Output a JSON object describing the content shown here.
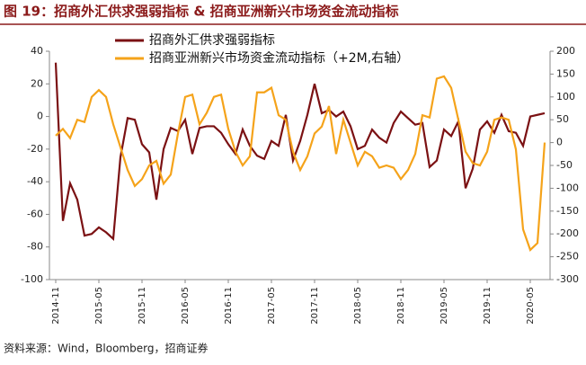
{
  "chart_data": {
    "type": "line",
    "title": "图 19：招商外汇供求强弱指标 & 招商亚洲新兴市场资金流动指标",
    "source": "资料来源：Wind，Bloomberg，招商证券",
    "categories": [
      "2014-11",
      null,
      null,
      null,
      null,
      null,
      "2015-05",
      null,
      null,
      null,
      null,
      null,
      "2015-11",
      null,
      null,
      null,
      null,
      null,
      "2016-05",
      null,
      null,
      null,
      null,
      null,
      "2016-11",
      null,
      null,
      null,
      null,
      null,
      "2017-05",
      null,
      null,
      null,
      null,
      null,
      "2017-11",
      null,
      null,
      null,
      null,
      null,
      "2018-05",
      null,
      null,
      null,
      null,
      null,
      "2018-11",
      null,
      null,
      null,
      null,
      null,
      "2019-05",
      null,
      null,
      null,
      null,
      null,
      "2019-11",
      null,
      null,
      null,
      null,
      null,
      "2020-05",
      null,
      null
    ],
    "series": [
      {
        "name": "招商外汇供求强弱指标",
        "color": "#7b1113",
        "axis": "y",
        "values": [
          33,
          -64,
          -41,
          -51,
          -73,
          -72,
          -68,
          -71,
          -75,
          -25,
          -1,
          -2,
          -17,
          -22,
          -51,
          -20,
          -7,
          -9,
          -2,
          -23,
          -7,
          -6,
          -6,
          -10,
          -17,
          -23,
          -8,
          -18,
          -24,
          -26,
          -15,
          -18,
          1,
          -27,
          -15,
          1,
          20,
          2,
          4,
          0,
          3,
          -6,
          -20,
          -18,
          -8,
          -13,
          -16,
          -4,
          3,
          -1,
          -5,
          -4,
          -31,
          -27,
          -8,
          -12,
          -3,
          -44,
          -32,
          -8,
          -3,
          -10,
          1,
          -9,
          -10,
          -18,
          0,
          1,
          2
        ]
      },
      {
        "name": "招商亚洲新兴市场资金流动指标（+2M,右轴）",
        "color": "#f5a31a",
        "axis": "y2",
        "values": [
          15,
          30,
          10,
          50,
          45,
          100,
          115,
          100,
          40,
          -10,
          -60,
          -95,
          -80,
          -50,
          -40,
          -90,
          -70,
          20,
          100,
          105,
          40,
          65,
          100,
          105,
          30,
          -20,
          -50,
          -30,
          110,
          110,
          120,
          60,
          50,
          -20,
          -60,
          -30,
          20,
          35,
          80,
          -25,
          50,
          0,
          -50,
          -20,
          -30,
          -55,
          -50,
          -55,
          -80,
          -60,
          -25,
          60,
          55,
          140,
          145,
          120,
          50,
          -20,
          -45,
          -50,
          -20,
          50,
          55,
          50,
          -15,
          -190,
          -235,
          -220,
          0
        ]
      }
    ],
    "ylim": [
      -100,
      40
    ],
    "yticks": [
      40,
      20,
      0,
      -20,
      -40,
      -60,
      -80,
      -100
    ],
    "y2lim": [
      -300,
      200
    ],
    "y2ticks": [
      200,
      150,
      100,
      50,
      0,
      -50,
      -100,
      -150,
      -200,
      -250,
      -300
    ]
  }
}
